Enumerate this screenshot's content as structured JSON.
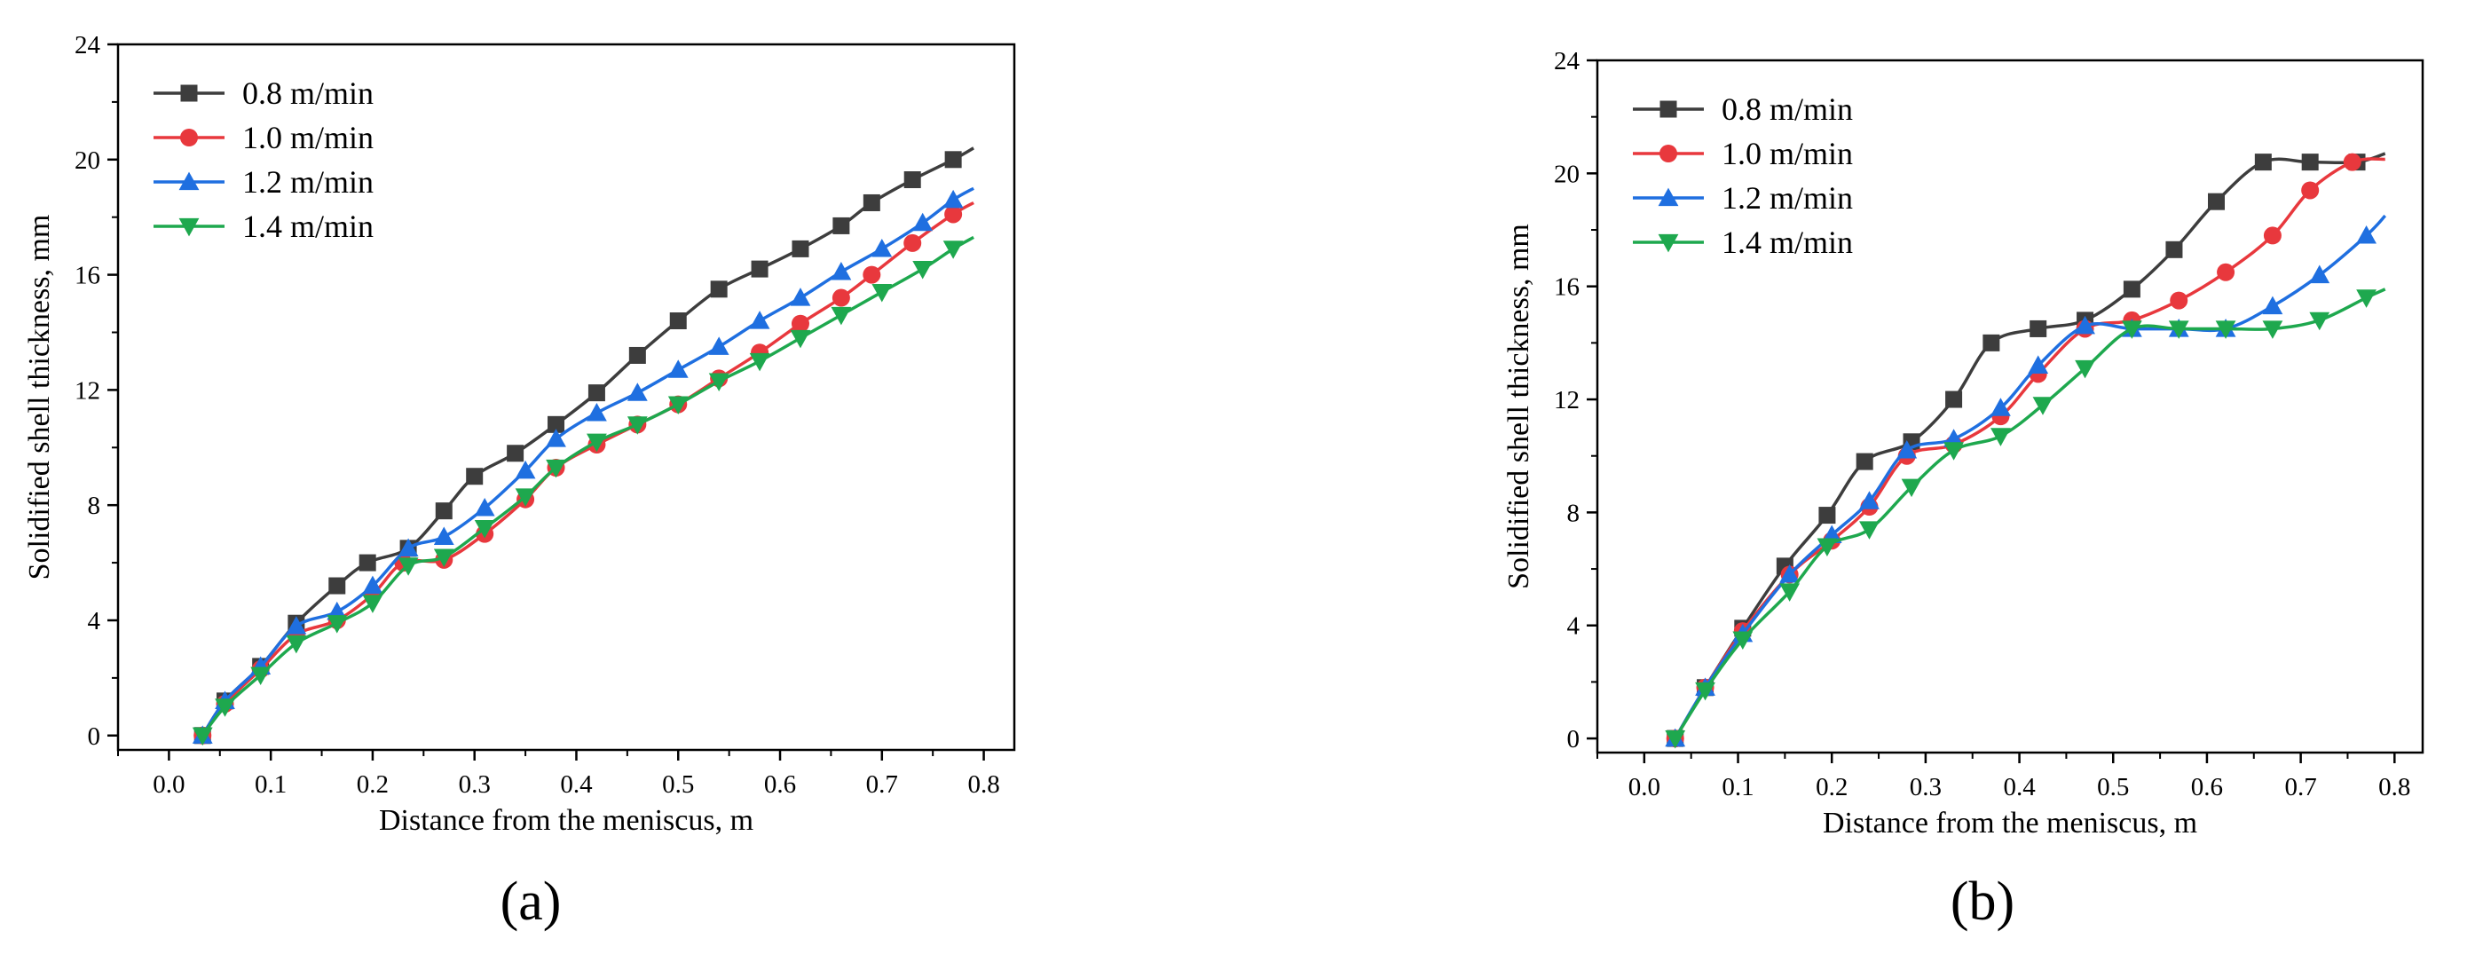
{
  "chart_data": [
    {
      "type": "line",
      "panel_label": "(a)",
      "xlabel": "Distance from the meniscus, m",
      "ylabel": "Solidified shell thickness, mm",
      "xlim": [
        -0.05,
        0.83
      ],
      "ylim": [
        -0.5,
        24
      ],
      "xticks": [
        0.0,
        0.1,
        0.2,
        0.3,
        0.4,
        0.5,
        0.6,
        0.7,
        0.8
      ],
      "xtick_labels": [
        "0.0",
        "0.1",
        "0.2",
        "0.3",
        "0.4",
        "0.5",
        "0.6",
        "0.7",
        "0.8"
      ],
      "yticks": [
        0,
        4,
        8,
        12,
        16,
        20,
        24
      ],
      "ytick_labels": [
        "0",
        "4",
        "8",
        "12",
        "16",
        "20",
        "24"
      ],
      "legend_position": "top-left",
      "series": [
        {
          "name": "0.8 m/min",
          "color": "#3d3d3d",
          "marker": "square",
          "x": [
            0.033,
            0.055,
            0.09,
            0.125,
            0.165,
            0.195,
            0.235,
            0.27,
            0.3,
            0.34,
            0.38,
            0.42,
            0.46,
            0.5,
            0.54,
            0.58,
            0.62,
            0.66,
            0.69,
            0.73,
            0.77,
            0.79
          ],
          "y": [
            0,
            1.2,
            2.4,
            3.9,
            5.2,
            6.0,
            6.5,
            7.8,
            9.0,
            9.8,
            10.8,
            11.9,
            13.2,
            14.4,
            15.5,
            16.2,
            16.9,
            17.7,
            18.5,
            19.3,
            20.0,
            20.4
          ]
        },
        {
          "name": "1.0 m/min",
          "color": "#e8383d",
          "marker": "circle",
          "x": [
            0.033,
            0.055,
            0.09,
            0.125,
            0.165,
            0.2,
            0.23,
            0.27,
            0.31,
            0.35,
            0.38,
            0.42,
            0.46,
            0.5,
            0.54,
            0.58,
            0.62,
            0.66,
            0.69,
            0.73,
            0.77,
            0.79
          ],
          "y": [
            0,
            1.1,
            2.3,
            3.5,
            4.0,
            4.9,
            6.0,
            6.1,
            7.0,
            8.2,
            9.3,
            10.1,
            10.8,
            11.5,
            12.4,
            13.3,
            14.3,
            15.2,
            16.0,
            17.1,
            18.1,
            18.5
          ]
        },
        {
          "name": "1.2 m/min",
          "color": "#1f6fe0",
          "marker": "triangle-up",
          "x": [
            0.033,
            0.055,
            0.09,
            0.125,
            0.165,
            0.2,
            0.235,
            0.27,
            0.31,
            0.35,
            0.38,
            0.42,
            0.46,
            0.5,
            0.54,
            0.58,
            0.62,
            0.66,
            0.7,
            0.74,
            0.77,
            0.79
          ],
          "y": [
            0,
            1.2,
            2.4,
            3.8,
            4.3,
            5.2,
            6.5,
            6.9,
            7.9,
            9.2,
            10.3,
            11.2,
            11.9,
            12.7,
            13.5,
            14.4,
            15.2,
            16.1,
            16.9,
            17.8,
            18.6,
            19.0
          ]
        },
        {
          "name": "1.4 m/min",
          "color": "#1ea84e",
          "marker": "triangle-down",
          "x": [
            0.033,
            0.055,
            0.09,
            0.125,
            0.165,
            0.2,
            0.235,
            0.27,
            0.31,
            0.35,
            0.38,
            0.42,
            0.46,
            0.5,
            0.54,
            0.58,
            0.62,
            0.66,
            0.7,
            0.74,
            0.77,
            0.79
          ],
          "y": [
            0,
            1.0,
            2.1,
            3.2,
            3.9,
            4.6,
            5.9,
            6.2,
            7.2,
            8.3,
            9.3,
            10.2,
            10.8,
            11.5,
            12.3,
            13.0,
            13.8,
            14.6,
            15.4,
            16.2,
            16.9,
            17.3
          ]
        }
      ]
    },
    {
      "type": "line",
      "panel_label": "(b)",
      "xlabel": "Distance from the meniscus, m",
      "ylabel": "Solidified shell thickness, mm",
      "xlim": [
        -0.05,
        0.83
      ],
      "ylim": [
        -0.5,
        24
      ],
      "xticks": [
        0.0,
        0.1,
        0.2,
        0.3,
        0.4,
        0.5,
        0.6,
        0.7,
        0.8
      ],
      "xtick_labels": [
        "0.0",
        "0.1",
        "0.2",
        "0.3",
        "0.4",
        "0.5",
        "0.6",
        "0.7",
        "0.8"
      ],
      "yticks": [
        0,
        4,
        8,
        12,
        16,
        20,
        24
      ],
      "ytick_labels": [
        "0",
        "4",
        "8",
        "12",
        "16",
        "20",
        "24"
      ],
      "legend_position": "top-left",
      "series": [
        {
          "name": "0.8 m/min",
          "color": "#3d3d3d",
          "marker": "square",
          "x": [
            0.033,
            0.065,
            0.105,
            0.15,
            0.195,
            0.235,
            0.285,
            0.33,
            0.37,
            0.42,
            0.47,
            0.52,
            0.565,
            0.61,
            0.66,
            0.71,
            0.76,
            0.79
          ],
          "y": [
            0,
            1.8,
            3.9,
            6.1,
            7.9,
            9.8,
            10.5,
            12.0,
            14.0,
            14.5,
            14.8,
            15.9,
            17.3,
            19.0,
            20.4,
            20.4,
            20.4,
            20.7
          ]
        },
        {
          "name": "1.0 m/min",
          "color": "#e8383d",
          "marker": "circle",
          "x": [
            0.033,
            0.065,
            0.105,
            0.155,
            0.2,
            0.24,
            0.28,
            0.33,
            0.38,
            0.42,
            0.47,
            0.52,
            0.57,
            0.62,
            0.67,
            0.71,
            0.755,
            0.79
          ],
          "y": [
            0,
            1.8,
            3.8,
            5.8,
            7.0,
            8.2,
            10.0,
            10.4,
            11.4,
            12.9,
            14.5,
            14.8,
            15.5,
            16.5,
            17.8,
            19.4,
            20.4,
            20.5
          ]
        },
        {
          "name": "1.2 m/min",
          "color": "#1f6fe0",
          "marker": "triangle-up",
          "x": [
            0.033,
            0.065,
            0.105,
            0.155,
            0.2,
            0.24,
            0.28,
            0.33,
            0.38,
            0.42,
            0.47,
            0.52,
            0.57,
            0.62,
            0.67,
            0.72,
            0.77,
            0.79
          ],
          "y": [
            0,
            1.8,
            3.7,
            5.8,
            7.2,
            8.4,
            10.2,
            10.6,
            11.7,
            13.2,
            14.6,
            14.5,
            14.5,
            14.5,
            15.3,
            16.4,
            17.8,
            18.5
          ]
        },
        {
          "name": "1.4 m/min",
          "color": "#1ea84e",
          "marker": "triangle-down",
          "x": [
            0.033,
            0.065,
            0.105,
            0.155,
            0.195,
            0.24,
            0.285,
            0.33,
            0.38,
            0.425,
            0.47,
            0.52,
            0.57,
            0.62,
            0.67,
            0.72,
            0.77,
            0.79
          ],
          "y": [
            0,
            1.7,
            3.5,
            5.2,
            6.8,
            7.4,
            8.9,
            10.2,
            10.7,
            11.8,
            13.1,
            14.5,
            14.5,
            14.5,
            14.5,
            14.8,
            15.6,
            15.9
          ]
        }
      ]
    }
  ]
}
